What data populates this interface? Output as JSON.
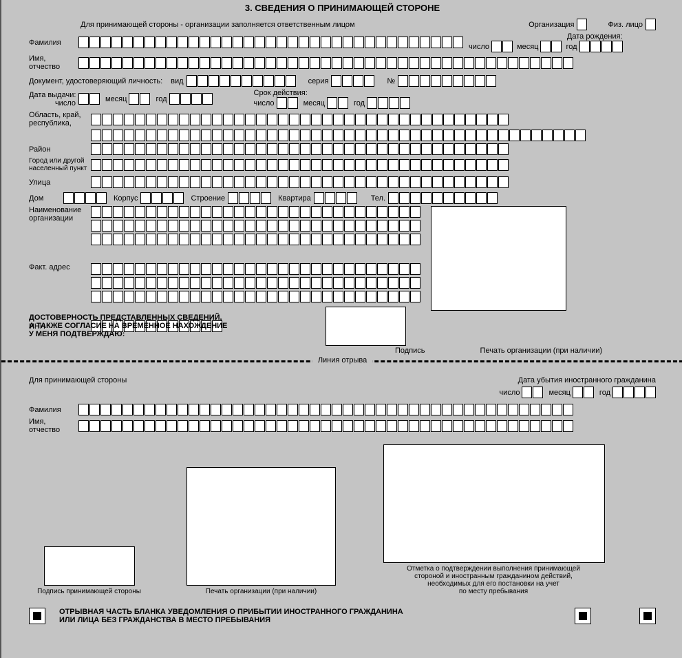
{
  "title": "3. СВЕДЕНИЯ О ПРИНИМАЮЩЕЙ СТОРОНЕ",
  "topnote": "Для принимающей стороны - организации заполняется ответственным лицом",
  "org": "Организация",
  "fiz": "Физ. лицо",
  "fam": "Фамилия",
  "imo": "Имя,\nотчество",
  "dob": "Дата рождения:",
  "dob_d": "число",
  "dob_m": "месяц",
  "dob_y": "год",
  "doc": "Документ, удостоверяющий личность:",
  "vid": "вид",
  "ser": "серия",
  "num": "№",
  "issue": "Дата выдачи:",
  "issue_d": "число",
  "issue_m": "месяц",
  "issue_y": "год",
  "valid": "Срок действия:",
  "valid_d": "число",
  "valid_m": "месяц",
  "valid_y": "год",
  "region": "Область, край,\nреспублика,",
  "raion": "Район",
  "city": "Город или другой\nнаселенный пункт",
  "street": "Улица",
  "house": "Дом",
  "korp": "Корпус",
  "str": "Строение",
  "flat": "Квартира",
  "tel": "Тел.",
  "orgname": "Наименование\nорганизации",
  "fact": "Факт. адрес",
  "inn": "ИНН",
  "decl1": "ДОСТОВЕРНОСТЬ ПРЕДСТАВЛЕННЫХ СВЕДЕНИЙ,",
  "decl2": "А ТАКЖЕ СОГЛАСИЕ НА ВРЕМЕННОЕ НАХОЖДЕНИЕ",
  "decl3": "У МЕНЯ ПОДТВЕРЖДАЮ:",
  "sig": "Подпись",
  "seal": "Печать организации (при наличии)",
  "tear": "Линия  отрыва",
  "host2": "Для принимающей стороны",
  "depart": "Дата убытия иностранного гражданина",
  "dep_d": "число",
  "dep_m": "месяц",
  "dep_y": "год",
  "fam2": "Фамилия",
  "imo2": "Имя,\nотчество",
  "sig2": "Подпись принимающей стороны",
  "seal2": "Печать организации (при наличии)",
  "mark": "Отметка о подтверждении выполнения принимающей\nстороной и иностранным гражданином действий,\nнеобходимых для его постановки на учет\nпо месту пребывания",
  "foot1": "ОТРЫВНАЯ ЧАСТЬ БЛАНКА УВЕДОМЛЕНИЯ О ПРИБЫТИИ ИНОСТРАННОГО ГРАЖДАНИНА",
  "foot2": "ИЛИ ЛИЦА БЕЗ ГРАЖДАНСТВА В МЕСТО ПРЕБЫВАНИЯ",
  "cell_counts": {
    "fam": 35,
    "imo": 45,
    "doc_vid": 10,
    "doc_ser": 4,
    "doc_num": 9,
    "region": 38,
    "region2": 45,
    "raion": 38,
    "city": 38,
    "street": 38,
    "house": 4,
    "korp": 4,
    "str": 4,
    "flat": 4,
    "tel": 10,
    "orgname": 30,
    "orgname_row2": 30,
    "orgname_row3": 30,
    "fact": 30,
    "fact_row2": 30,
    "fact_row3": 30,
    "inn": 12,
    "fam2": 45,
    "imo2": 45
  }
}
